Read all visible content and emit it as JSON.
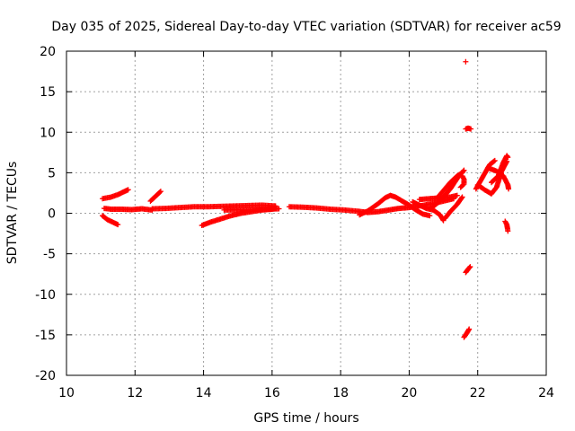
{
  "chart_data": {
    "type": "scatter",
    "title": "Day 035 of 2025, Sidereal Day-to-day VTEC variation (SDTVAR) for receiver ac59",
    "xlabel": "GPS time / hours",
    "ylabel": "SDTVAR / TECUs",
    "xlim": [
      10,
      24
    ],
    "ylim": [
      -20,
      20
    ],
    "x_ticks": [
      10,
      12,
      14,
      16,
      18,
      20,
      22,
      24
    ],
    "y_ticks": [
      -20,
      -15,
      -10,
      -5,
      0,
      5,
      10,
      15,
      20
    ],
    "x_tick_labels": [
      "10",
      "12",
      "14",
      "16",
      "18",
      "20",
      "22",
      "24"
    ],
    "y_tick_labels": [
      "-20",
      "-15",
      "-10",
      "-5",
      "0",
      "5",
      "10",
      "15",
      "20"
    ],
    "grid": true,
    "marker": "+",
    "color": "#ff0000",
    "segments": [
      [
        [
          11.05,
          1.8
        ],
        [
          11.3,
          2.0
        ],
        [
          11.5,
          2.3
        ],
        [
          11.7,
          2.7
        ],
        [
          11.8,
          2.9
        ]
      ],
      [
        [
          11.1,
          0.6
        ],
        [
          11.3,
          0.5
        ],
        [
          11.6,
          0.5
        ],
        [
          11.9,
          0.45
        ],
        [
          12.2,
          0.55
        ],
        [
          12.5,
          0.4
        ]
      ],
      [
        [
          11.05,
          -0.3
        ],
        [
          11.2,
          -0.8
        ],
        [
          11.35,
          -1.1
        ],
        [
          11.5,
          -1.4
        ]
      ],
      [
        [
          12.45,
          1.5
        ],
        [
          12.6,
          2.1
        ],
        [
          12.75,
          2.7
        ]
      ],
      [
        [
          12.5,
          0.55
        ],
        [
          12.9,
          0.6
        ],
        [
          13.3,
          0.7
        ],
        [
          13.7,
          0.8
        ],
        [
          14.1,
          0.8
        ],
        [
          14.5,
          0.85
        ],
        [
          14.9,
          0.9
        ],
        [
          15.3,
          0.95
        ],
        [
          15.7,
          1.0
        ],
        [
          16.1,
          0.9
        ]
      ],
      [
        [
          13.95,
          -1.5
        ],
        [
          14.2,
          -1.1
        ],
        [
          14.5,
          -0.7
        ],
        [
          14.8,
          -0.3
        ],
        [
          15.1,
          0.0
        ],
        [
          15.4,
          0.2
        ],
        [
          15.7,
          0.4
        ],
        [
          16.0,
          0.5
        ],
        [
          16.1,
          0.6
        ]
      ],
      [
        [
          14.6,
          0.4
        ],
        [
          15.0,
          0.4
        ],
        [
          15.4,
          0.45
        ],
        [
          15.8,
          0.5
        ],
        [
          16.2,
          0.55
        ]
      ],
      [
        [
          16.5,
          0.8
        ],
        [
          16.9,
          0.75
        ],
        [
          17.3,
          0.65
        ],
        [
          17.7,
          0.5
        ],
        [
          18.1,
          0.4
        ],
        [
          18.5,
          0.25
        ],
        [
          18.8,
          0.1
        ],
        [
          19.1,
          0.2
        ],
        [
          19.4,
          0.4
        ],
        [
          19.7,
          0.6
        ],
        [
          20.0,
          0.7
        ],
        [
          20.3,
          0.9
        ],
        [
          20.7,
          1.2
        ],
        [
          21.0,
          1.5
        ],
        [
          21.3,
          1.8
        ]
      ],
      [
        [
          18.55,
          -0.2
        ],
        [
          18.8,
          0.3
        ],
        [
          19.1,
          1.2
        ],
        [
          19.3,
          1.9
        ],
        [
          19.45,
          2.2
        ],
        [
          19.6,
          2.0
        ],
        [
          19.8,
          1.5
        ],
        [
          20.0,
          1.0
        ],
        [
          20.2,
          0.4
        ],
        [
          20.4,
          -0.1
        ],
        [
          20.6,
          -0.3
        ]
      ],
      [
        [
          20.3,
          1.7
        ],
        [
          20.6,
          1.8
        ],
        [
          20.9,
          1.9
        ],
        [
          21.2,
          2.0
        ],
        [
          21.4,
          2.2
        ]
      ],
      [
        [
          20.1,
          1.4
        ],
        [
          20.3,
          1.0
        ],
        [
          20.5,
          0.6
        ],
        [
          20.7,
          0.4
        ],
        [
          20.9,
          -0.2
        ],
        [
          21.0,
          -0.9
        ]
      ],
      [
        [
          20.8,
          1.8
        ],
        [
          21.0,
          2.8
        ],
        [
          21.2,
          3.8
        ],
        [
          21.4,
          4.6
        ],
        [
          21.55,
          5.0
        ]
      ],
      [
        [
          20.6,
          0.5
        ],
        [
          20.9,
          1.5
        ],
        [
          21.2,
          3.0
        ],
        [
          21.45,
          4.6
        ],
        [
          21.6,
          5.3
        ]
      ],
      [
        [
          21.5,
          3.2
        ],
        [
          21.6,
          3.6
        ],
        [
          21.6,
          4.2
        ],
        [
          21.55,
          4.6
        ]
      ],
      [
        [
          21.05,
          -0.6
        ],
        [
          21.2,
          0.2
        ],
        [
          21.4,
          1.1
        ],
        [
          21.55,
          2.0
        ]
      ],
      [
        [
          21.65,
          10.4
        ],
        [
          21.72,
          10.5
        ],
        [
          21.8,
          10.4
        ]
      ],
      [
        [
          21.65,
          18.7
        ]
      ],
      [
        [
          21.65,
          -7.3
        ],
        [
          21.72,
          -6.9
        ],
        [
          21.78,
          -6.6
        ]
      ],
      [
        [
          21.6,
          -15.3
        ],
        [
          21.68,
          -14.8
        ],
        [
          21.75,
          -14.3
        ]
      ],
      [
        [
          21.95,
          3.0
        ],
        [
          22.15,
          4.5
        ],
        [
          22.35,
          6.0
        ],
        [
          22.5,
          6.5
        ]
      ],
      [
        [
          22.0,
          3.5
        ],
        [
          22.2,
          2.9
        ],
        [
          22.4,
          2.4
        ],
        [
          22.55,
          3.2
        ],
        [
          22.7,
          5.2
        ],
        [
          22.85,
          6.4
        ]
      ],
      [
        [
          22.4,
          3.8
        ],
        [
          22.6,
          4.6
        ],
        [
          22.75,
          6.3
        ],
        [
          22.85,
          7.1
        ],
        [
          22.88,
          6.9
        ]
      ],
      [
        [
          22.3,
          5.6
        ],
        [
          22.55,
          5.2
        ],
        [
          22.75,
          4.6
        ],
        [
          22.88,
          3.5
        ],
        [
          22.9,
          3.0
        ]
      ],
      [
        [
          22.8,
          -1.0
        ],
        [
          22.85,
          -1.4
        ],
        [
          22.87,
          -1.9
        ],
        [
          22.88,
          -2.2
        ]
      ]
    ]
  }
}
